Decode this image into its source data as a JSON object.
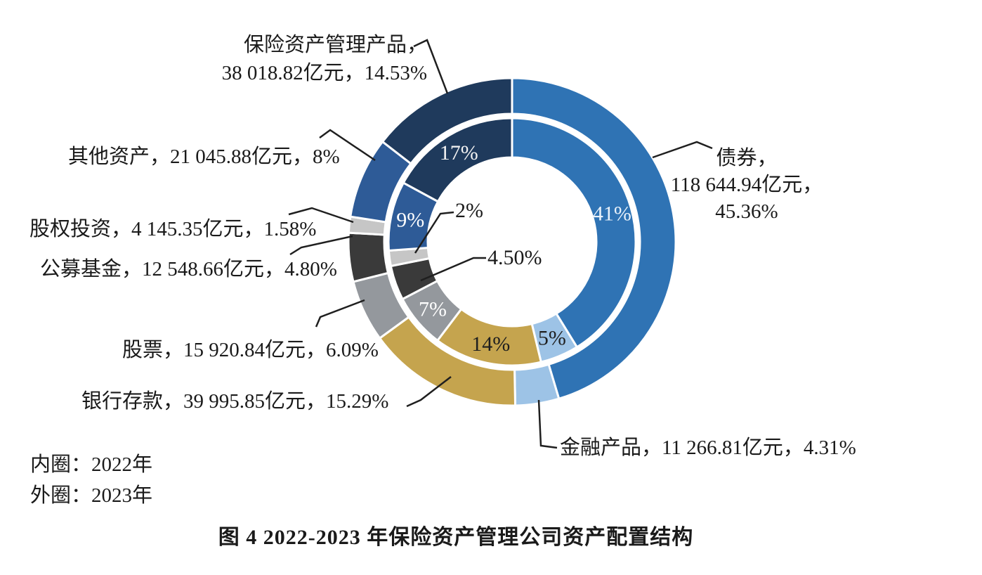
{
  "figure": {
    "title": "图 4  2022-2023 年保险资产管理公司资产配置结构"
  },
  "legend": {
    "inner_ring": "内圈：2022年",
    "outer_ring": "外圈：2023年"
  },
  "callouts": {
    "bonds": {
      "line1": "债券，",
      "line2": "118 644.94亿元，",
      "line3": "45.36%"
    },
    "financial_products": {
      "text": "金融产品，11 266.81亿元，4.31%"
    },
    "bank_deposits": {
      "text": "银行存款，39 995.85亿元，15.29%"
    },
    "stocks": {
      "text": "股票，15 920.84亿元，6.09%"
    },
    "public_funds": {
      "text": "公募基金，12 548.66亿元，4.80%"
    },
    "equity_investment": {
      "text": "股权投资，4 145.35亿元，1.58%"
    },
    "other_assets": {
      "text": "其他资产，21 045.88亿元，8%"
    },
    "insurance_amp": {
      "line1": "保险资产管理产品，",
      "line2": "38 018.82亿元，14.53%"
    }
  },
  "chart_data": {
    "type": "pie",
    "subtype": "nested-donut",
    "title": "2022-2023 年保险资产管理公司资产配置结构",
    "unit": "亿元",
    "legend_position": "bottom-left",
    "categories": [
      "债券",
      "金融产品",
      "银行存款",
      "股票",
      "公募基金",
      "股权投资",
      "其他资产",
      "保险资产管理产品"
    ],
    "colors": [
      "#2F73B4",
      "#9DC3E6",
      "#C5A44E",
      "#94989D",
      "#3A3A3A",
      "#C6C6C6",
      "#2E5B97",
      "#1F3A5C"
    ],
    "amounts_2023_yi_yuan": [
      118644.94,
      11266.81,
      39995.85,
      15920.84,
      12548.66,
      4145.35,
      21045.88,
      38018.82
    ],
    "series": [
      {
        "name": "2022年（内圈）",
        "ring": "inner",
        "values": [
          41,
          5,
          14,
          7,
          4.5,
          2,
          9,
          17
        ],
        "labels": [
          "41%",
          "5%",
          "14%",
          "7%",
          "4.50%",
          "2%",
          "9%",
          "17%"
        ]
      },
      {
        "name": "2023年（外圈）",
        "ring": "outer",
        "values": [
          45.36,
          4.31,
          15.29,
          6.09,
          4.8,
          1.58,
          8,
          14.53
        ],
        "labels": [
          "45.36%",
          "4.31%",
          "15.29%",
          "6.09%",
          "4.80%",
          "1.58%",
          "8%",
          "14.53%"
        ]
      }
    ]
  }
}
